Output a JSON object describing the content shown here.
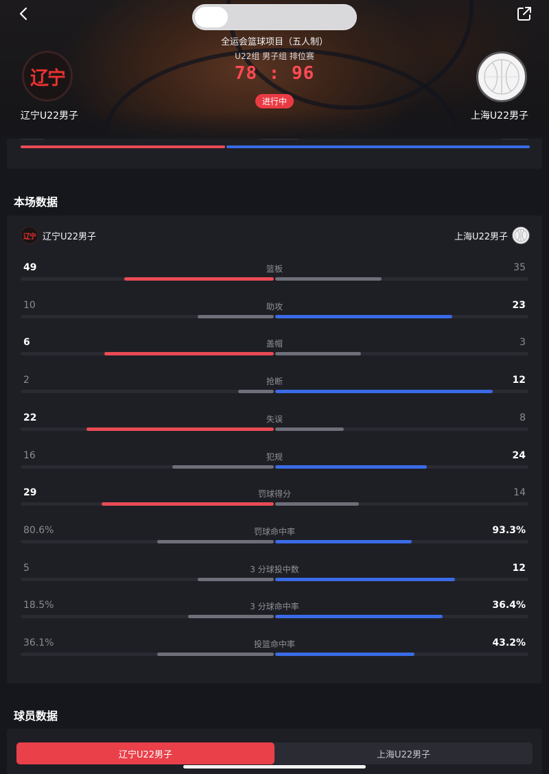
{
  "header": {
    "event_name": "全运会篮球项目（五人制）",
    "group_name": "U22组 男子组 排位赛",
    "score": "78 : 96",
    "status": "进行中",
    "home_team": {
      "name": "辽宁U22男子",
      "logo_text": "辽宁"
    },
    "away_team": {
      "name": "上海U22男子"
    }
  },
  "colors": {
    "home": "#ea4b55",
    "away": "#3a6be6",
    "neutral": "#6e6f78"
  },
  "match_stats": {
    "title": "本场数据",
    "home_team": "辽宁U22男子",
    "away_team": "上海U22男子",
    "rows": [
      {
        "label": "篮板",
        "home": "49",
        "away": "35",
        "home_ratio": 0.59,
        "away_ratio": 0.42,
        "leader": "home"
      },
      {
        "label": "助攻",
        "home": "10",
        "away": "23",
        "home_ratio": 0.3,
        "away_ratio": 0.7,
        "leader": "away"
      },
      {
        "label": "盖帽",
        "home": "6",
        "away": "3",
        "home_ratio": 0.67,
        "away_ratio": 0.34,
        "leader": "home"
      },
      {
        "label": "抢断",
        "home": "2",
        "away": "12",
        "home_ratio": 0.14,
        "away_ratio": 0.86,
        "leader": "away"
      },
      {
        "label": "失误",
        "home": "22",
        "away": "8",
        "home_ratio": 0.74,
        "away_ratio": 0.27,
        "leader": "home"
      },
      {
        "label": "犯规",
        "home": "16",
        "away": "24",
        "home_ratio": 0.4,
        "away_ratio": 0.6,
        "leader": "away"
      },
      {
        "label": "罚球得分",
        "home": "29",
        "away": "14",
        "home_ratio": 0.68,
        "away_ratio": 0.33,
        "leader": "home"
      },
      {
        "label": "罚球命中率",
        "home": "80.6%",
        "away": "93.3%",
        "home_ratio": 0.46,
        "away_ratio": 0.54,
        "leader": "away"
      },
      {
        "label": "3 分球投中数",
        "home": "5",
        "away": "12",
        "home_ratio": 0.3,
        "away_ratio": 0.71,
        "leader": "away"
      },
      {
        "label": "3 分球命中率",
        "home": "18.5%",
        "away": "36.4%",
        "home_ratio": 0.34,
        "away_ratio": 0.66,
        "leader": "away"
      },
      {
        "label": "投篮命中率",
        "home": "36.1%",
        "away": "43.2%",
        "home_ratio": 0.46,
        "away_ratio": 0.55,
        "leader": "away"
      }
    ]
  },
  "player_stats": {
    "title": "球员数据",
    "tabs": [
      "辽宁U22男子",
      "上海U22男子"
    ],
    "active_tab": 0
  }
}
